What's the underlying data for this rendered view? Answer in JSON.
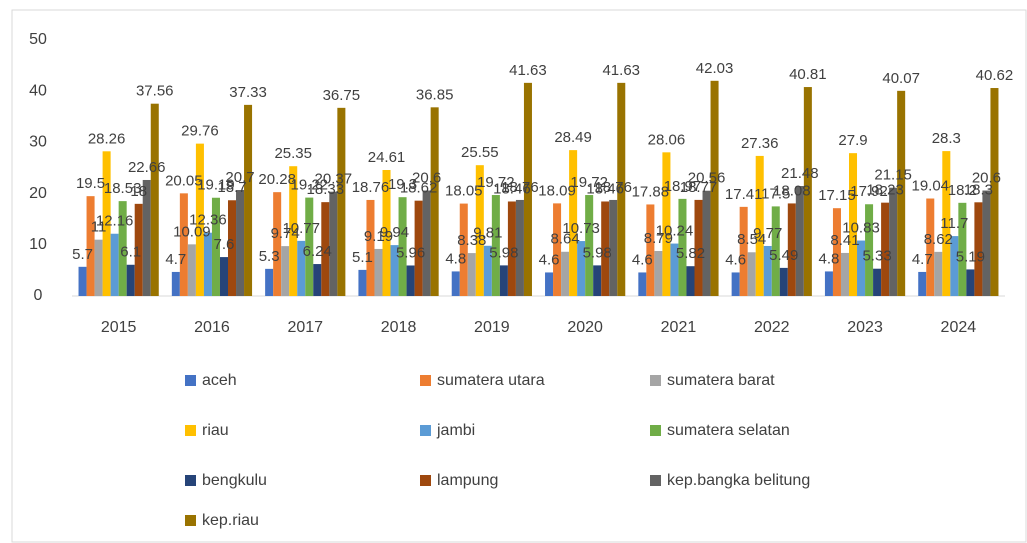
{
  "chart_data": {
    "type": "bar",
    "categories": [
      "2015",
      "2016",
      "2017",
      "2018",
      "2019",
      "2020",
      "2021",
      "2022",
      "2023",
      "2024"
    ],
    "series": [
      {
        "name": "aceh",
        "color": "#4472c4",
        "values": [
          5.7,
          4.7,
          5.3,
          5.1,
          4.8,
          4.6,
          4.6,
          4.6,
          4.8,
          4.7
        ]
      },
      {
        "name": "sumatera utara",
        "color": "#ed7d31",
        "values": [
          19.5,
          20.05,
          20.28,
          18.76,
          18.05,
          18.09,
          17.88,
          17.41,
          17.15,
          19.04
        ]
      },
      {
        "name": "sumatera barat",
        "color": "#a5a5a5",
        "values": [
          11,
          10.09,
          9.74,
          9.19,
          8.38,
          8.64,
          8.79,
          8.54,
          8.41,
          8.62
        ]
      },
      {
        "name": "riau",
        "color": "#ffc000",
        "values": [
          28.26,
          29.76,
          25.35,
          24.61,
          25.55,
          28.49,
          28.06,
          27.36,
          27.9,
          28.3
        ]
      },
      {
        "name": "jambi",
        "color": "#5b9bd5",
        "values": [
          12.16,
          12.36,
          10.77,
          9.94,
          9.81,
          10.73,
          10.24,
          9.77,
          10.83,
          11.7
        ]
      },
      {
        "name": "sumatera selatan",
        "color": "#70ad47",
        "values": [
          18.53,
          19.19,
          19.22,
          19.3,
          19.72,
          19.72,
          18.97,
          17.5,
          17.92,
          18.2
        ]
      },
      {
        "name": "bengkulu",
        "color": "#264478",
        "values": [
          6.1,
          7.6,
          6.24,
          5.96,
          5.98,
          5.98,
          5.82,
          5.49,
          5.33,
          5.19
        ]
      },
      {
        "name": "lampung",
        "color": "#9e480e",
        "values": [
          18,
          18.7,
          18.33,
          18.62,
          18.46,
          18.46,
          18.77,
          18.08,
          18.23,
          18.3
        ]
      },
      {
        "name": "kep.bangka belitung",
        "color": "#636363",
        "values": [
          22.66,
          20.7,
          20.37,
          20.6,
          18.76,
          18.76,
          20.56,
          21.48,
          21.15,
          20.6
        ]
      },
      {
        "name": "kep.riau",
        "color": "#997300",
        "values": [
          37.56,
          37.33,
          36.75,
          36.85,
          41.63,
          41.63,
          42.03,
          40.81,
          40.07,
          40.62
        ]
      }
    ],
    "ylim": [
      0,
      50
    ],
    "yticks": [
      0,
      10,
      20,
      30,
      40,
      50
    ],
    "grid": false,
    "legend": "bottom"
  }
}
